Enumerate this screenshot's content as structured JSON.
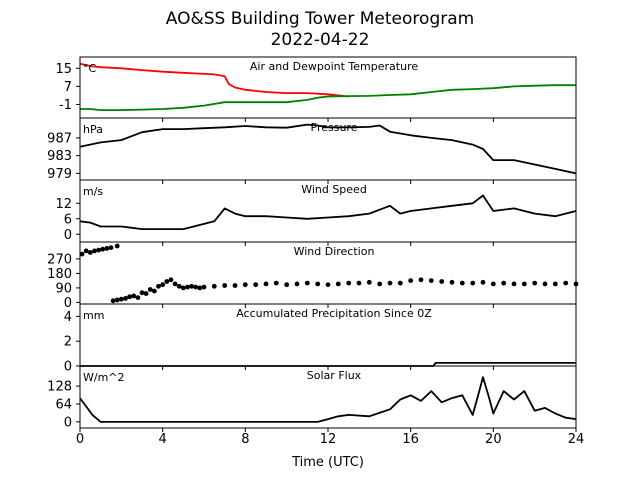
{
  "figure": {
    "title_line1": "AO&SS Building Tower Meteorogram",
    "title_line2": "2022-04-22",
    "xlabel": "Time (UTC)",
    "xlim": [
      0,
      24
    ],
    "xticks": [
      0,
      4,
      8,
      12,
      16,
      20,
      24
    ]
  },
  "colors": {
    "temperature": "#ff0000",
    "dewpoint": "#008000",
    "black": "#000000"
  },
  "chart_data": [
    {
      "type": "line",
      "title": "Air and Dewpoint Temperature",
      "unit": "°C",
      "ylim": [
        -7,
        20
      ],
      "yticks": [
        -1,
        7,
        15
      ],
      "grid": false,
      "series": [
        {
          "color": "#ff0000",
          "x": [
            0,
            0.5,
            1,
            2,
            3,
            4,
            5,
            6,
            6.5,
            7,
            7.2,
            7.5,
            8,
            9,
            10,
            11,
            12,
            12.5,
            13
          ],
          "y": [
            17,
            16,
            15.5,
            15,
            14.2,
            13.5,
            13,
            12.5,
            12.3,
            11.5,
            8,
            6.5,
            5.5,
            4.5,
            4,
            4,
            3.5,
            3,
            2.5
          ]
        },
        {
          "color": "#008000",
          "x": [
            0,
            0.5,
            1,
            2,
            3,
            4,
            5,
            5.5,
            6,
            7,
            8,
            9,
            10,
            11,
            11.5,
            12,
            13,
            14,
            15,
            16,
            17,
            18,
            19,
            20,
            21,
            22,
            23,
            24
          ],
          "y": [
            -3,
            -3,
            -3.5,
            -3.5,
            -3.3,
            -3,
            -2.5,
            -2,
            -1.5,
            0,
            0,
            0,
            0,
            1,
            2,
            2.5,
            2.7,
            2.8,
            3.2,
            3.5,
            4.5,
            5.5,
            5.8,
            6.2,
            7,
            7.3,
            7.5,
            7.5
          ]
        }
      ]
    },
    {
      "type": "line",
      "title": "Pressure",
      "unit": "hPa",
      "ylim": [
        977.5,
        991.5
      ],
      "yticks": [
        979,
        983,
        987
      ],
      "grid": false,
      "series": [
        {
          "color": "#000000",
          "x": [
            0,
            1,
            2,
            3,
            4,
            5,
            6,
            7,
            8,
            9,
            10,
            11,
            11.5,
            12,
            13,
            14,
            14.5,
            15,
            16,
            17,
            18,
            18.5,
            19,
            19.5,
            20,
            21,
            22,
            23,
            24
          ],
          "y": [
            985,
            986,
            986.5,
            988.3,
            989,
            989,
            989.2,
            989.4,
            989.7,
            989.4,
            989.3,
            990,
            989.8,
            989.4,
            989.4,
            989.5,
            989.8,
            988.4,
            987.6,
            987,
            986.5,
            986,
            985.5,
            984.5,
            982,
            982,
            981,
            980,
            979
          ]
        }
      ]
    },
    {
      "type": "line",
      "title": "Wind Speed",
      "unit": "m/s",
      "ylim": [
        -3,
        21
      ],
      "yticks": [
        0,
        6,
        12
      ],
      "grid": false,
      "series": [
        {
          "color": "#000000",
          "x": [
            0,
            0.5,
            1,
            2,
            3,
            4,
            5,
            6,
            6.5,
            7,
            7.5,
            8,
            9,
            10,
            11,
            12,
            13,
            14,
            15,
            15.5,
            16,
            17,
            18,
            19,
            19.5,
            20,
            21,
            22,
            23,
            24
          ],
          "y": [
            5,
            4.5,
            3,
            3,
            2,
            2,
            2,
            4,
            5,
            10,
            8,
            7,
            7,
            6.5,
            6,
            6.5,
            7,
            8,
            11,
            8,
            9,
            10,
            11,
            12,
            15,
            9,
            10,
            8,
            7,
            9
          ]
        }
      ]
    },
    {
      "type": "scatter",
      "title": "Wind Direction",
      "unit": "",
      "ylim": [
        -10,
        375
      ],
      "yticks": [
        0,
        90,
        180,
        270
      ],
      "grid": false,
      "series": [
        {
          "color": "#000000",
          "x": [
            0.1,
            0.3,
            0.5,
            0.7,
            0.9,
            1.1,
            1.3,
            1.5,
            1.8,
            1.6,
            1.8,
            2.0,
            2.2,
            2.4,
            2.6,
            2.8,
            3.0,
            3.2,
            3.4,
            3.6,
            3.8,
            4.0,
            4.2,
            4.4,
            4.6,
            4.8,
            5.0,
            5.2,
            5.4,
            5.6,
            5.8,
            6.0,
            6.5,
            7.0,
            7.5,
            8.0,
            8.5,
            9.0,
            9.5,
            10.0,
            10.5,
            11.0,
            11.5,
            12.0,
            12.5,
            13.0,
            13.5,
            14.0,
            14.5,
            15.0,
            15.5,
            16.0,
            16.5,
            17.0,
            17.5,
            18.0,
            18.5,
            19.0,
            19.5,
            20.0,
            20.5,
            21.0,
            21.5,
            22.0,
            22.5,
            23.0,
            23.5,
            24.0
          ],
          "y": [
            300,
            320,
            310,
            320,
            325,
            330,
            335,
            340,
            350,
            10,
            15,
            20,
            25,
            35,
            40,
            30,
            60,
            55,
            80,
            70,
            100,
            110,
            130,
            140,
            115,
            100,
            90,
            95,
            100,
            95,
            90,
            95,
            100,
            105,
            105,
            110,
            110,
            115,
            120,
            110,
            115,
            120,
            115,
            110,
            115,
            120,
            120,
            125,
            115,
            120,
            120,
            135,
            140,
            135,
            130,
            125,
            120,
            120,
            125,
            115,
            120,
            115,
            115,
            120,
            115,
            115,
            120,
            115
          ]
        }
      ]
    },
    {
      "type": "line",
      "title": "Accumulated Precipitation Since 0Z",
      "unit": "mm",
      "ylim": [
        0,
        5
      ],
      "yticks": [
        0,
        2,
        4
      ],
      "grid": false,
      "series": [
        {
          "color": "#000000",
          "x": [
            0,
            17.1,
            17.2,
            24
          ],
          "y": [
            0,
            0,
            0.25,
            0.25
          ]
        }
      ]
    },
    {
      "type": "line",
      "title": "Solar Flux",
      "unit": "W/m^2",
      "ylim": [
        -22,
        200
      ],
      "yticks": [
        0,
        64,
        128
      ],
      "grid": false,
      "series": [
        {
          "color": "#000000",
          "x": [
            0,
            0.3,
            0.6,
            1,
            2,
            4,
            6,
            8,
            10,
            11.5,
            12,
            12.5,
            13,
            14,
            15,
            15.5,
            16,
            16.5,
            17,
            17.5,
            18,
            18.5,
            19,
            19.3,
            19.5,
            19.8,
            20,
            20.5,
            21,
            21.5,
            22,
            22.5,
            23,
            23.5,
            24
          ],
          "y": [
            85,
            55,
            25,
            0,
            0,
            0,
            0,
            0,
            0,
            0,
            10,
            20,
            25,
            20,
            45,
            80,
            95,
            75,
            110,
            70,
            85,
            95,
            25,
            105,
            160,
            85,
            30,
            110,
            80,
            110,
            40,
            50,
            30,
            15,
            10
          ]
        }
      ]
    }
  ]
}
